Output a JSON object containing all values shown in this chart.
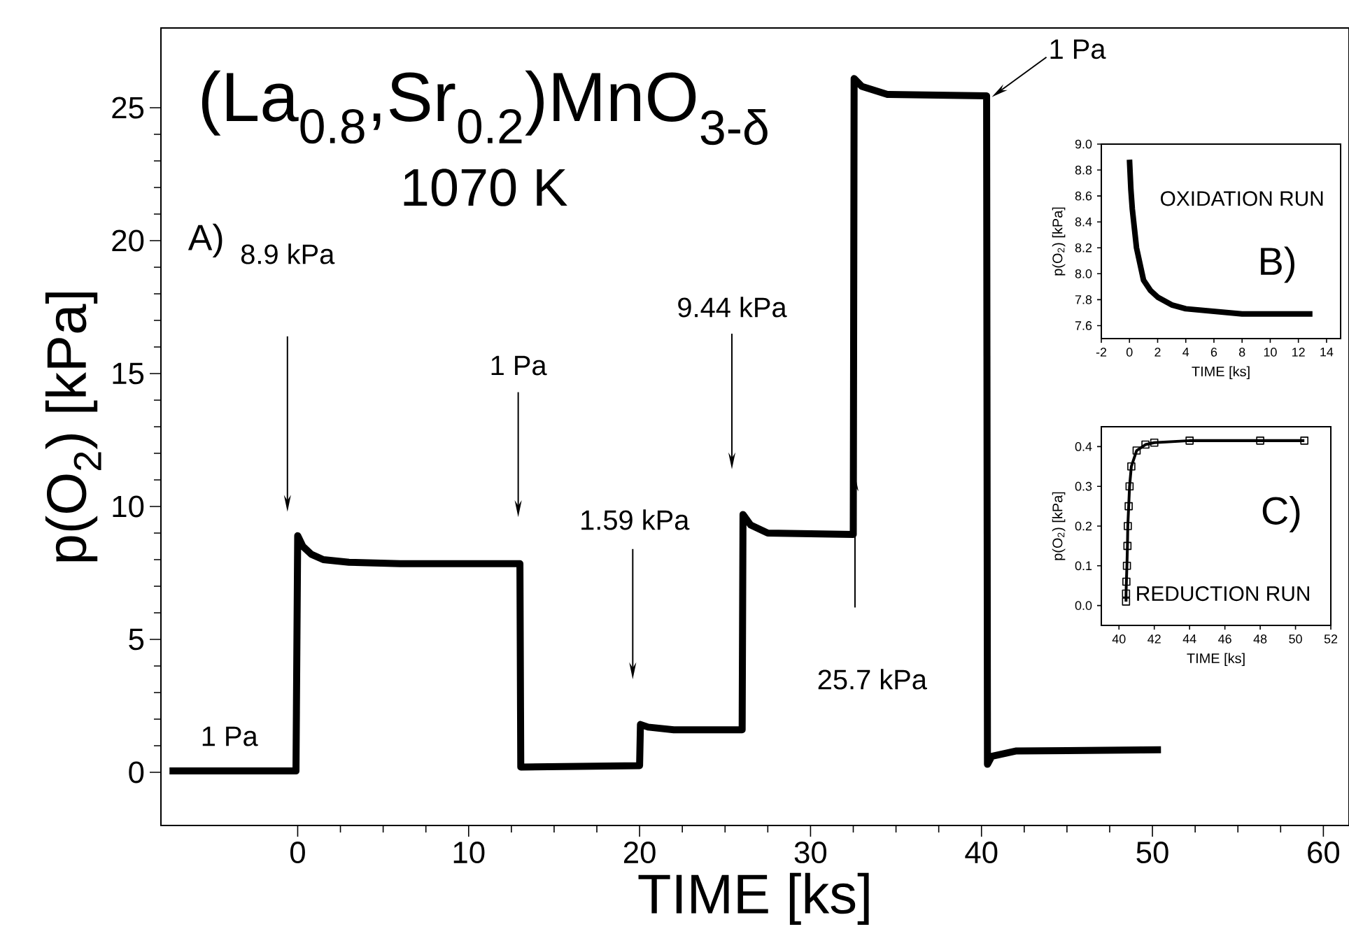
{
  "chart_data": [
    {
      "type": "line",
      "title": "(La$_{0.8}$,Sr$_{0.2}$)MnO$_{3-δ}$",
      "subtitle": "1070 K",
      "xlabel": "TIME [ks]",
      "ylabel": "p(O$_{2}$)  [kPa]",
      "xlim": [
        -8,
        61.5
      ],
      "ylim": [
        -2,
        28
      ],
      "xticks": [
        0,
        10,
        20,
        30,
        40,
        50,
        60
      ],
      "yticks": [
        0,
        5,
        10,
        15,
        20,
        25
      ],
      "marker": "none",
      "series": [
        {
          "color": "#000000",
          "x": [
            -7.5,
            -0.1,
            0,
            0.3,
            0.8,
            1.5,
            3,
            6,
            13,
            13.05,
            20,
            20.05,
            20.5,
            22,
            26,
            26.05,
            26.5,
            27.5,
            32.5,
            32.55,
            33,
            34.5,
            40.3,
            40.35,
            40.6,
            42,
            50.5
          ],
          "values": [
            0.05,
            0.05,
            8.9,
            8.5,
            8.2,
            8.0,
            7.9,
            7.85,
            7.85,
            0.2,
            0.25,
            1.8,
            1.7,
            1.6,
            1.6,
            9.7,
            9.3,
            9.0,
            8.95,
            26.1,
            25.8,
            25.5,
            25.45,
            0.3,
            0.6,
            0.8,
            0.85
          ]
        }
      ],
      "annotations": [
        "A)",
        {
          "text": "1 Pa",
          "x": -4,
          "y": 0.05
        },
        "8.9 kPa",
        "1 Pa",
        "1.59 kPa",
        "9.44 kPa",
        "25.7 kPa",
        {
          "text": "1 Pa",
          "x": 40.6,
          "y": 25.4
        }
      ]
    },
    {
      "type": "line",
      "xlabel": "TIME [ks]",
      "ylabel": "p(O$_{2}$) [kPa]",
      "xlim": [
        -2,
        15
      ],
      "ylim": [
        7.5,
        9.0
      ],
      "xticks": [
        -2,
        0,
        2,
        4,
        6,
        8,
        10,
        12,
        14
      ],
      "yticks": [
        7.6,
        7.8,
        {
          "value": 8,
          "label": "8.0"
        },
        8.2,
        8.4,
        8.6,
        8.8,
        {
          "value": 9,
          "label": "9.0"
        }
      ],
      "marker": "none",
      "series": [
        {
          "color": "#000000",
          "x": [
            0,
            0.1,
            0.2,
            0.5,
            1,
            1.5,
            2,
            3,
            4,
            6,
            8,
            10,
            13
          ],
          "values": [
            8.88,
            8.65,
            8.5,
            8.2,
            7.95,
            7.87,
            7.82,
            7.76,
            7.73,
            7.71,
            7.69,
            7.69,
            7.69
          ]
        }
      ],
      "annotations": [
        "OXIDATION RUN",
        "B)"
      ]
    },
    {
      "type": "line",
      "xlabel": "TIME [ks]",
      "ylabel": "p(O$_{2}$) [kPa]",
      "xlim": [
        39,
        52
      ],
      "ylim": [
        -0.05,
        0.45
      ],
      "xticks": [
        40,
        42,
        44,
        46,
        48,
        50,
        52
      ],
      "yticks": [
        {
          "value": 0,
          "label": "0.0"
        },
        0.1,
        0.2,
        0.3,
        0.4
      ],
      "marker": "square",
      "series": [
        {
          "color": "#000000",
          "x": [
            40.4,
            40.4,
            40.42,
            40.45,
            40.48,
            40.5,
            40.55,
            40.6,
            40.7,
            41,
            41.5,
            42,
            44,
            48,
            50.5
          ],
          "values": [
            0.01,
            0.03,
            0.06,
            0.1,
            0.15,
            0.2,
            0.25,
            0.3,
            0.35,
            0.39,
            0.405,
            0.41,
            0.415,
            0.415,
            0.415
          ]
        }
      ],
      "annotations": [
        "C)",
        "REDUCTION RUN"
      ]
    }
  ]
}
